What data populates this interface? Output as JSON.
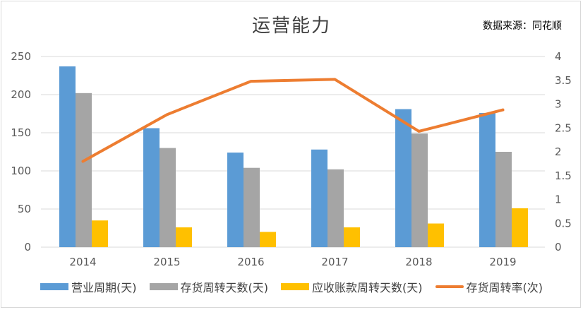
{
  "chart_data": {
    "type": "bar",
    "title": "运营能力",
    "source_note": "数据来源：同花顺",
    "categories": [
      "2014",
      "2015",
      "2016",
      "2017",
      "2018",
      "2019"
    ],
    "series": [
      {
        "name": "营业周期(天)",
        "type": "bar",
        "axis": "left",
        "color": "#5b9bd5",
        "values": [
          237,
          156,
          124,
          128,
          181,
          176
        ]
      },
      {
        "name": "存货周转天数(天)",
        "type": "bar",
        "axis": "left",
        "color": "#a5a5a5",
        "values": [
          202,
          130,
          104,
          102,
          149,
          125
        ]
      },
      {
        "name": "应收账款周转天数(天)",
        "type": "bar",
        "axis": "left",
        "color": "#ffc000",
        "values": [
          35,
          26,
          20,
          26,
          31,
          51
        ]
      },
      {
        "name": "存货周转率(次)",
        "type": "line",
        "axis": "right",
        "color": "#ed7d31",
        "values": [
          1.8,
          2.78,
          3.48,
          3.52,
          2.43,
          2.88
        ]
      }
    ],
    "ylim": [
      0,
      250
    ],
    "y2lim": [
      0,
      4
    ],
    "yticks": [
      "0",
      "50",
      "100",
      "150",
      "200",
      "250"
    ],
    "y2ticks": [
      "0",
      "0.5",
      "1",
      "1.5",
      "2",
      "2.5",
      "3",
      "3.5",
      "4"
    ],
    "grid": true,
    "legend_position": "bottom"
  }
}
